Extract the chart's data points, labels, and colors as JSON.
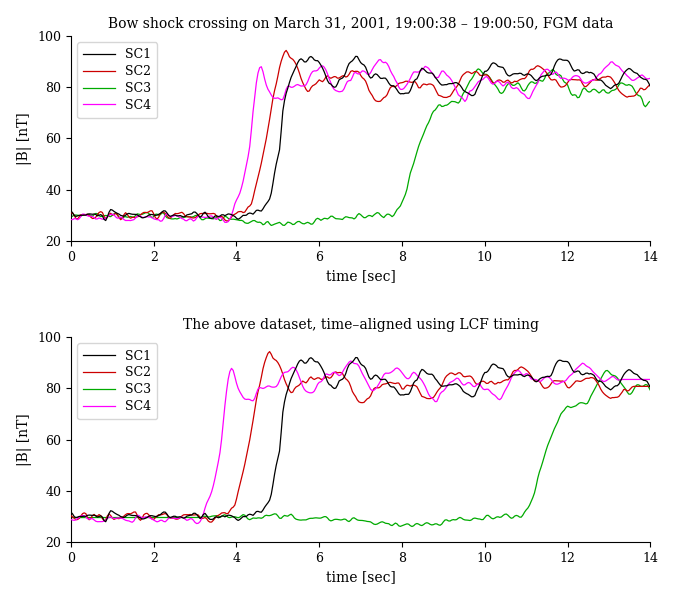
{
  "title1": "Bow shock crossing on March 31, 2001, 19:00:38 – 19:00:50, FGM data",
  "title2": "The above dataset, time–aligned using LCF timing",
  "xlabel": "time [sec]",
  "ylabel": "|B| [nT]",
  "xlim": [
    0,
    14
  ],
  "ylim": [
    20,
    100
  ],
  "xticks": [
    0,
    2,
    4,
    6,
    8,
    10,
    12,
    14
  ],
  "yticks": [
    20,
    40,
    60,
    80,
    100
  ],
  "colors": {
    "SC1": "#000000",
    "SC2": "#cc0000",
    "SC3": "#00aa00",
    "SC4": "#ff00ff"
  },
  "linewidth": 0.9,
  "legend_entries": [
    "SC1",
    "SC2",
    "SC3",
    "SC4"
  ]
}
